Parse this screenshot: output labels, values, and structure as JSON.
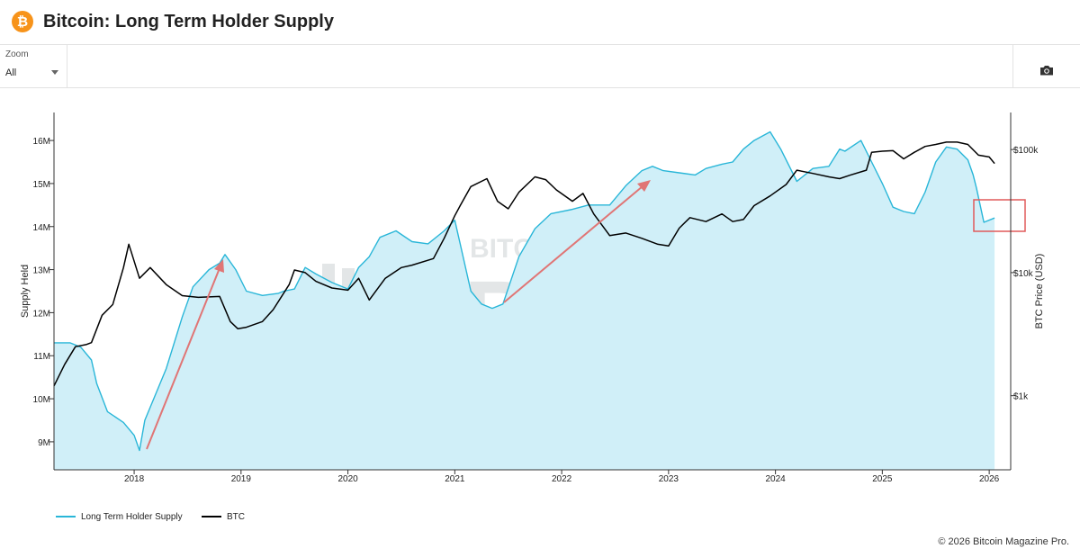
{
  "header": {
    "title": "Bitcoin: Long Term Holder Supply",
    "logo_glyph": "₿",
    "logo_color": "#f7931a"
  },
  "toolbar": {
    "zoom_label": "Zoom",
    "zoom_value": "All",
    "camera_icon": "camera-icon"
  },
  "legend": [
    {
      "label": "Long Term Holder Supply",
      "color": "#29b6d8"
    },
    {
      "label": "BTC",
      "color": "#000000"
    }
  ],
  "watermark": {
    "line1": "BITCOIN MAGAZINE",
    "line2": "PRO"
  },
  "footer": {
    "copyright": "© 2026 Bitcoin Magazine Pro."
  },
  "chart_data": {
    "type": "line",
    "title": "",
    "xlabel": "",
    "ylabel_left": "Supply Held",
    "ylabel_right": "BTC Price (USD)",
    "x_ticks": [
      "2018",
      "2019",
      "2020",
      "2021",
      "2022",
      "2023",
      "2024",
      "2025",
      "2026"
    ],
    "y_left_ticks": [
      "9M",
      "10M",
      "11M",
      "12M",
      "13M",
      "14M",
      "15M",
      "16M"
    ],
    "y_left_tick_values": [
      9,
      10,
      11,
      12,
      13,
      14,
      15,
      16
    ],
    "y_left_range": [
      8.35,
      16.65
    ],
    "y_right_ticks": [
      "$1k",
      "$10k",
      "$100k"
    ],
    "y_right_tick_values": [
      1000,
      10000,
      100000
    ],
    "y_right_scale": "log",
    "y_right_range": [
      250,
      200000
    ],
    "x_range": [
      2017.25,
      2026.1
    ],
    "grid": false,
    "legend_position": "bottom-left",
    "series": [
      {
        "name": "Long Term Holder Supply",
        "axis": "left",
        "unit": "M BTC",
        "color": "#29b6d8",
        "fill": "#d0eff8",
        "x": [
          2017.25,
          2017.4,
          2017.5,
          2017.6,
          2017.65,
          2017.75,
          2017.9,
          2018.0,
          2018.05,
          2018.1,
          2018.3,
          2018.45,
          2018.55,
          2018.7,
          2018.8,
          2018.85,
          2018.95,
          2019.05,
          2019.2,
          2019.35,
          2019.4,
          2019.5,
          2019.6,
          2019.7,
          2019.85,
          2020.0,
          2020.1,
          2020.2,
          2020.3,
          2020.45,
          2020.6,
          2020.75,
          2020.9,
          2021.0,
          2021.05,
          2021.15,
          2021.25,
          2021.35,
          2021.45,
          2021.6,
          2021.75,
          2021.9,
          2022.1,
          2022.25,
          2022.45,
          2022.6,
          2022.75,
          2022.85,
          2022.95,
          2023.1,
          2023.25,
          2023.35,
          2023.5,
          2023.6,
          2023.7,
          2023.8,
          2023.95,
          2024.05,
          2024.2,
          2024.35,
          2024.5,
          2024.6,
          2024.65,
          2024.8,
          2024.9,
          2025.0,
          2025.1,
          2025.2,
          2025.3,
          2025.4,
          2025.5,
          2025.6,
          2025.7,
          2025.8,
          2025.85,
          2025.88,
          2025.95,
          2026.05
        ],
        "values": [
          11.3,
          11.3,
          11.2,
          10.9,
          10.35,
          9.7,
          9.45,
          9.15,
          8.8,
          9.5,
          10.7,
          11.9,
          12.6,
          13.0,
          13.15,
          13.35,
          13.0,
          12.5,
          12.4,
          12.45,
          12.5,
          12.55,
          13.05,
          12.9,
          12.7,
          12.55,
          13.05,
          13.3,
          13.75,
          13.9,
          13.65,
          13.6,
          13.9,
          14.15,
          13.6,
          12.5,
          12.2,
          12.1,
          12.2,
          13.3,
          13.95,
          14.3,
          14.4,
          14.5,
          14.5,
          14.95,
          15.3,
          15.4,
          15.3,
          15.25,
          15.2,
          15.35,
          15.45,
          15.5,
          15.8,
          16.0,
          16.2,
          15.8,
          15.05,
          15.35,
          15.4,
          15.8,
          15.75,
          16.0,
          15.5,
          15.0,
          14.45,
          14.35,
          14.3,
          14.8,
          15.5,
          15.85,
          15.8,
          15.55,
          15.2,
          14.9,
          14.1,
          14.2
        ]
      },
      {
        "name": "BTC",
        "axis": "right",
        "unit": "USD",
        "color": "#000000",
        "x": [
          2017.25,
          2017.35,
          2017.45,
          2017.55,
          2017.6,
          2017.7,
          2017.8,
          2017.9,
          2017.95,
          2017.97,
          2018.05,
          2018.15,
          2018.3,
          2018.45,
          2018.6,
          2018.8,
          2018.9,
          2018.97,
          2019.05,
          2019.2,
          2019.3,
          2019.45,
          2019.5,
          2019.6,
          2019.7,
          2019.85,
          2020.0,
          2020.1,
          2020.2,
          2020.35,
          2020.5,
          2020.6,
          2020.8,
          2020.9,
          2021.0,
          2021.05,
          2021.15,
          2021.3,
          2021.4,
          2021.5,
          2021.6,
          2021.75,
          2021.85,
          2021.95,
          2022.1,
          2022.2,
          2022.3,
          2022.45,
          2022.6,
          2022.75,
          2022.9,
          2023.0,
          2023.1,
          2023.2,
          2023.35,
          2023.5,
          2023.6,
          2023.7,
          2023.8,
          2023.95,
          2024.1,
          2024.2,
          2024.35,
          2024.5,
          2024.6,
          2024.7,
          2024.85,
          2024.9,
          2025.0,
          2025.1,
          2025.2,
          2025.3,
          2025.4,
          2025.5,
          2025.6,
          2025.7,
          2025.8,
          2025.9,
          2026.0,
          2026.05
        ],
        "values": [
          1200,
          1800,
          2500,
          2600,
          2700,
          4500,
          5500,
          11000,
          17000,
          15000,
          9000,
          11000,
          8000,
          6500,
          6300,
          6400,
          4000,
          3500,
          3600,
          4000,
          5000,
          8000,
          10500,
          10000,
          8500,
          7500,
          7200,
          9000,
          6000,
          9000,
          11000,
          11500,
          13000,
          19000,
          29000,
          35000,
          50000,
          58000,
          38000,
          33000,
          45000,
          60000,
          57000,
          47000,
          38000,
          44000,
          30000,
          20000,
          21000,
          19000,
          17000,
          16500,
          23000,
          28000,
          26000,
          30000,
          26000,
          27000,
          35000,
          42000,
          52000,
          68000,
          64000,
          60000,
          58000,
          62000,
          68000,
          95000,
          97000,
          98000,
          84000,
          95000,
          106000,
          110000,
          115000,
          115000,
          110000,
          90000,
          87000,
          77000
        ]
      }
    ]
  }
}
